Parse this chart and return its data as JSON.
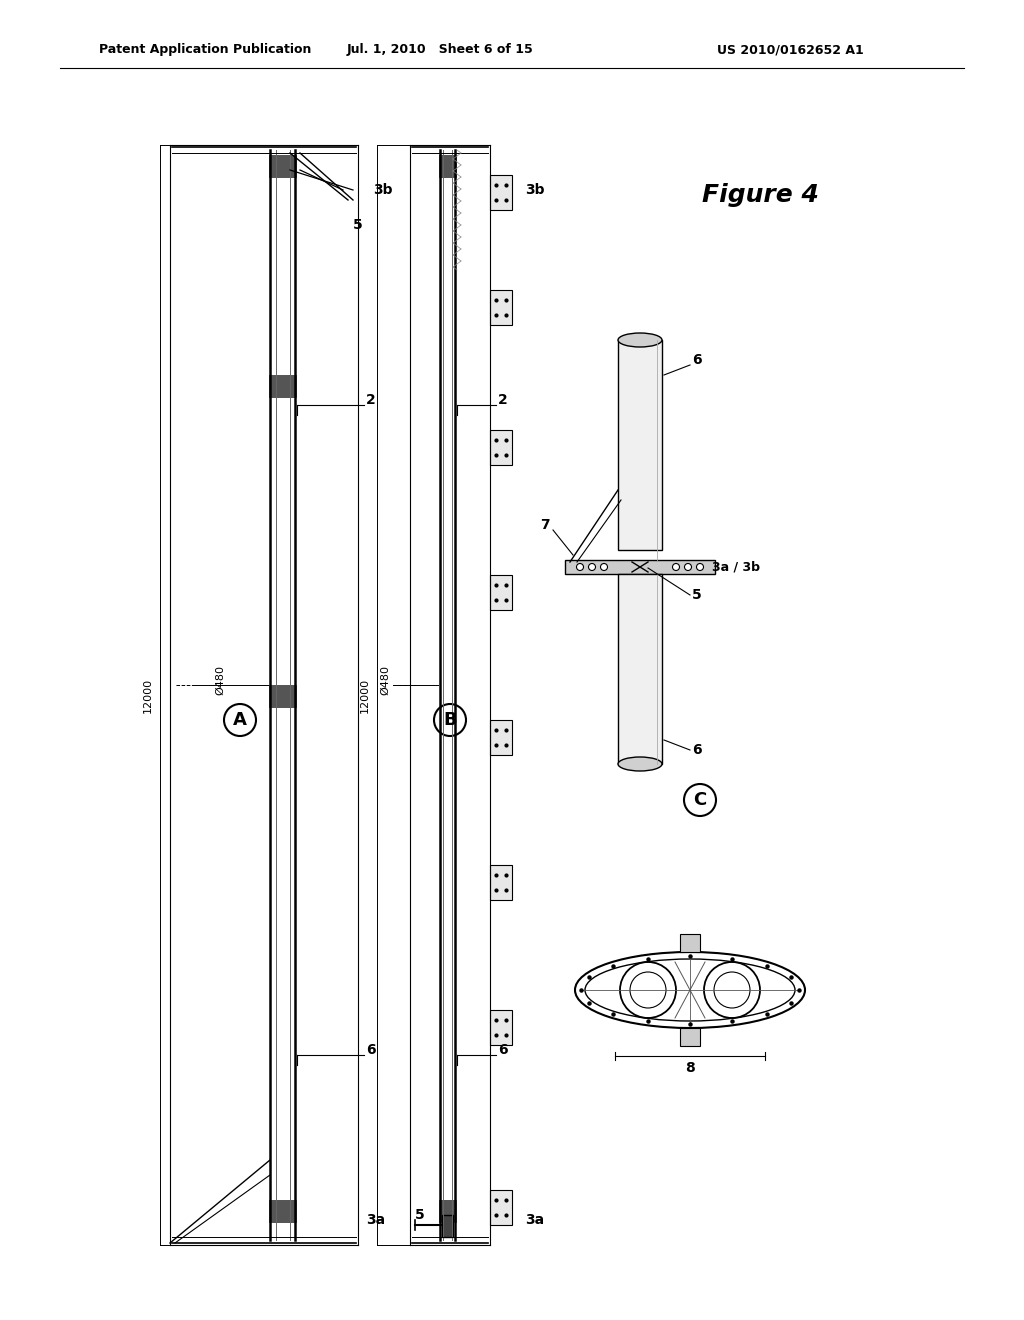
{
  "bg_color": "#ffffff",
  "header_left": "Patent Application Publication",
  "header_mid": "Jul. 1, 2010   Sheet 6 of 15",
  "header_right": "US 2010/0162652 A1",
  "figure_label": "Figure 4"
}
